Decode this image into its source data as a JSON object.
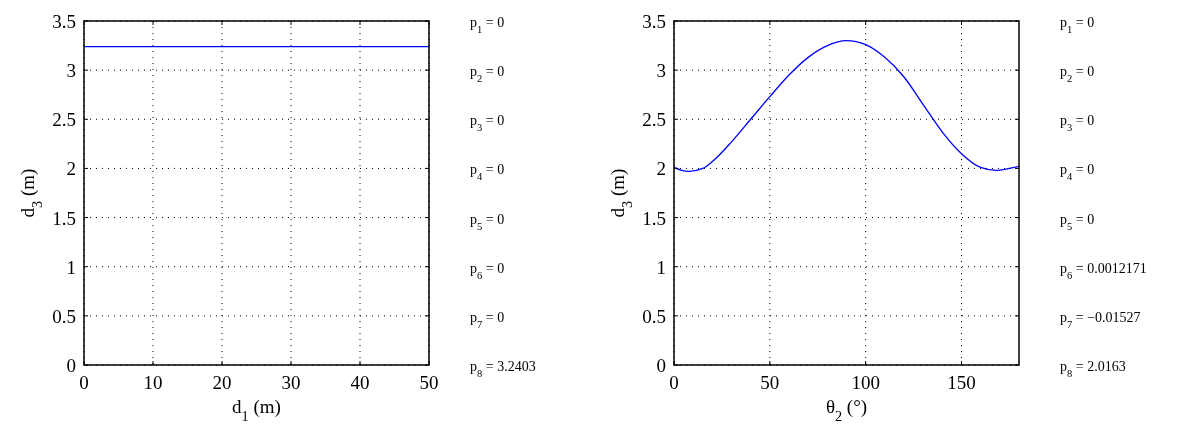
{
  "chart_data": [
    {
      "type": "line",
      "xlabel": "d$_{1}$ (m)",
      "ylabel": "d$_{3}$ (m)",
      "xlim": [
        0,
        50
      ],
      "ylim": [
        0,
        3.5
      ],
      "xticks": [
        0,
        10,
        20,
        30,
        40,
        50
      ],
      "yticks": [
        0,
        0.5,
        1,
        1.5,
        2,
        2.5,
        3,
        3.5
      ],
      "grid": true,
      "series": [
        {
          "color": "#0000ff",
          "x": [
            0,
            50
          ],
          "values": [
            3.24,
            3.24
          ]
        }
      ],
      "annotations": [
        "p$_{1}$ = 0",
        "p$_{2}$ = 0",
        "p$_{3}$ = 0",
        "p$_{4}$ = 0",
        "p$_{5}$ = 0",
        "p$_{6}$ = 0",
        "p$_{7}$ = 0",
        "p$_{8}$ = 3.2403"
      ]
    },
    {
      "type": "line",
      "xlabel": "θ$_{2}$ (°)",
      "ylabel": "d$_{3}$ (m)",
      "xlim": [
        0,
        180
      ],
      "ylim": [
        0,
        3.5
      ],
      "xticks": [
        0,
        50,
        100,
        150
      ],
      "yticks": [
        0,
        0.5,
        1,
        1.5,
        2,
        2.5,
        3,
        3.5
      ],
      "grid": true,
      "series": [
        {
          "color": "#0000ff",
          "x": [
            0,
            4,
            8,
            15,
            20,
            30,
            40,
            50,
            60,
            70,
            80,
            90,
            100,
            110,
            120,
            130,
            140,
            150,
            160,
            168,
            175,
            180
          ],
          "values": [
            2.01,
            1.98,
            1.97,
            2.0,
            2.07,
            2.27,
            2.5,
            2.73,
            2.95,
            3.13,
            3.25,
            3.3,
            3.26,
            3.13,
            2.93,
            2.65,
            2.37,
            2.15,
            2.01,
            1.98,
            2.0,
            2.02
          ]
        }
      ],
      "annotations": [
        "p$_{1}$ = 0",
        "p$_{2}$ = 0",
        "p$_{3}$ = 0",
        "p$_{4}$ = 0",
        "p$_{5}$ = 0",
        "p$_{6}$ = 0.0012171",
        "p$_{7}$ = −0.01527",
        "p$_{8}$ = 2.0163"
      ]
    }
  ]
}
